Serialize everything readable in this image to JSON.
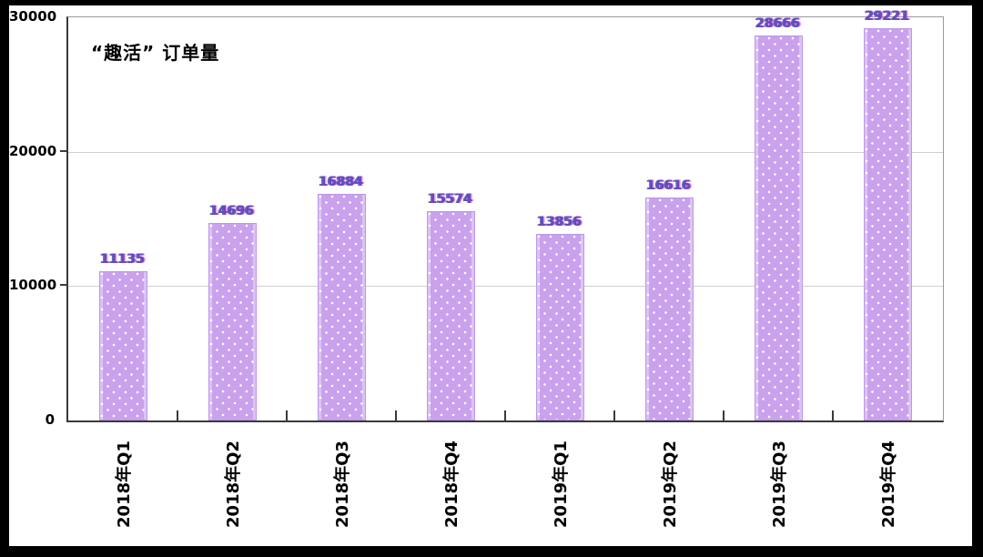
{
  "chart_data": {
    "type": "bar",
    "title": "“趣活” 订单量",
    "categories": [
      "2018年Q1",
      "2018年Q2",
      "2018年Q3",
      "2018年Q4",
      "2019年Q1",
      "2019年Q2",
      "2019年Q3",
      "2019年Q4"
    ],
    "values": [
      11135,
      14696,
      16884,
      15574,
      13856,
      16616,
      28666,
      29221
    ],
    "yticks": [
      "0",
      "10000",
      "20000",
      "30000"
    ],
    "ylim": [
      0,
      30000
    ],
    "xlabel": "",
    "ylabel": "",
    "legend": "none",
    "grid": "horizontal-at-10000-and-20000",
    "bar_pattern": "white polka dots",
    "colors": {
      "bar_fill": "#c9a1ec",
      "bar_dot": "#ffffff",
      "value_label": "#6b46c2",
      "axis": "#3a3a3a",
      "plot_border": "#9a9a9a",
      "gridline": "#cfcfcf",
      "text": "#000000",
      "background": "#ffffff",
      "outer_frame": "#000000"
    }
  }
}
